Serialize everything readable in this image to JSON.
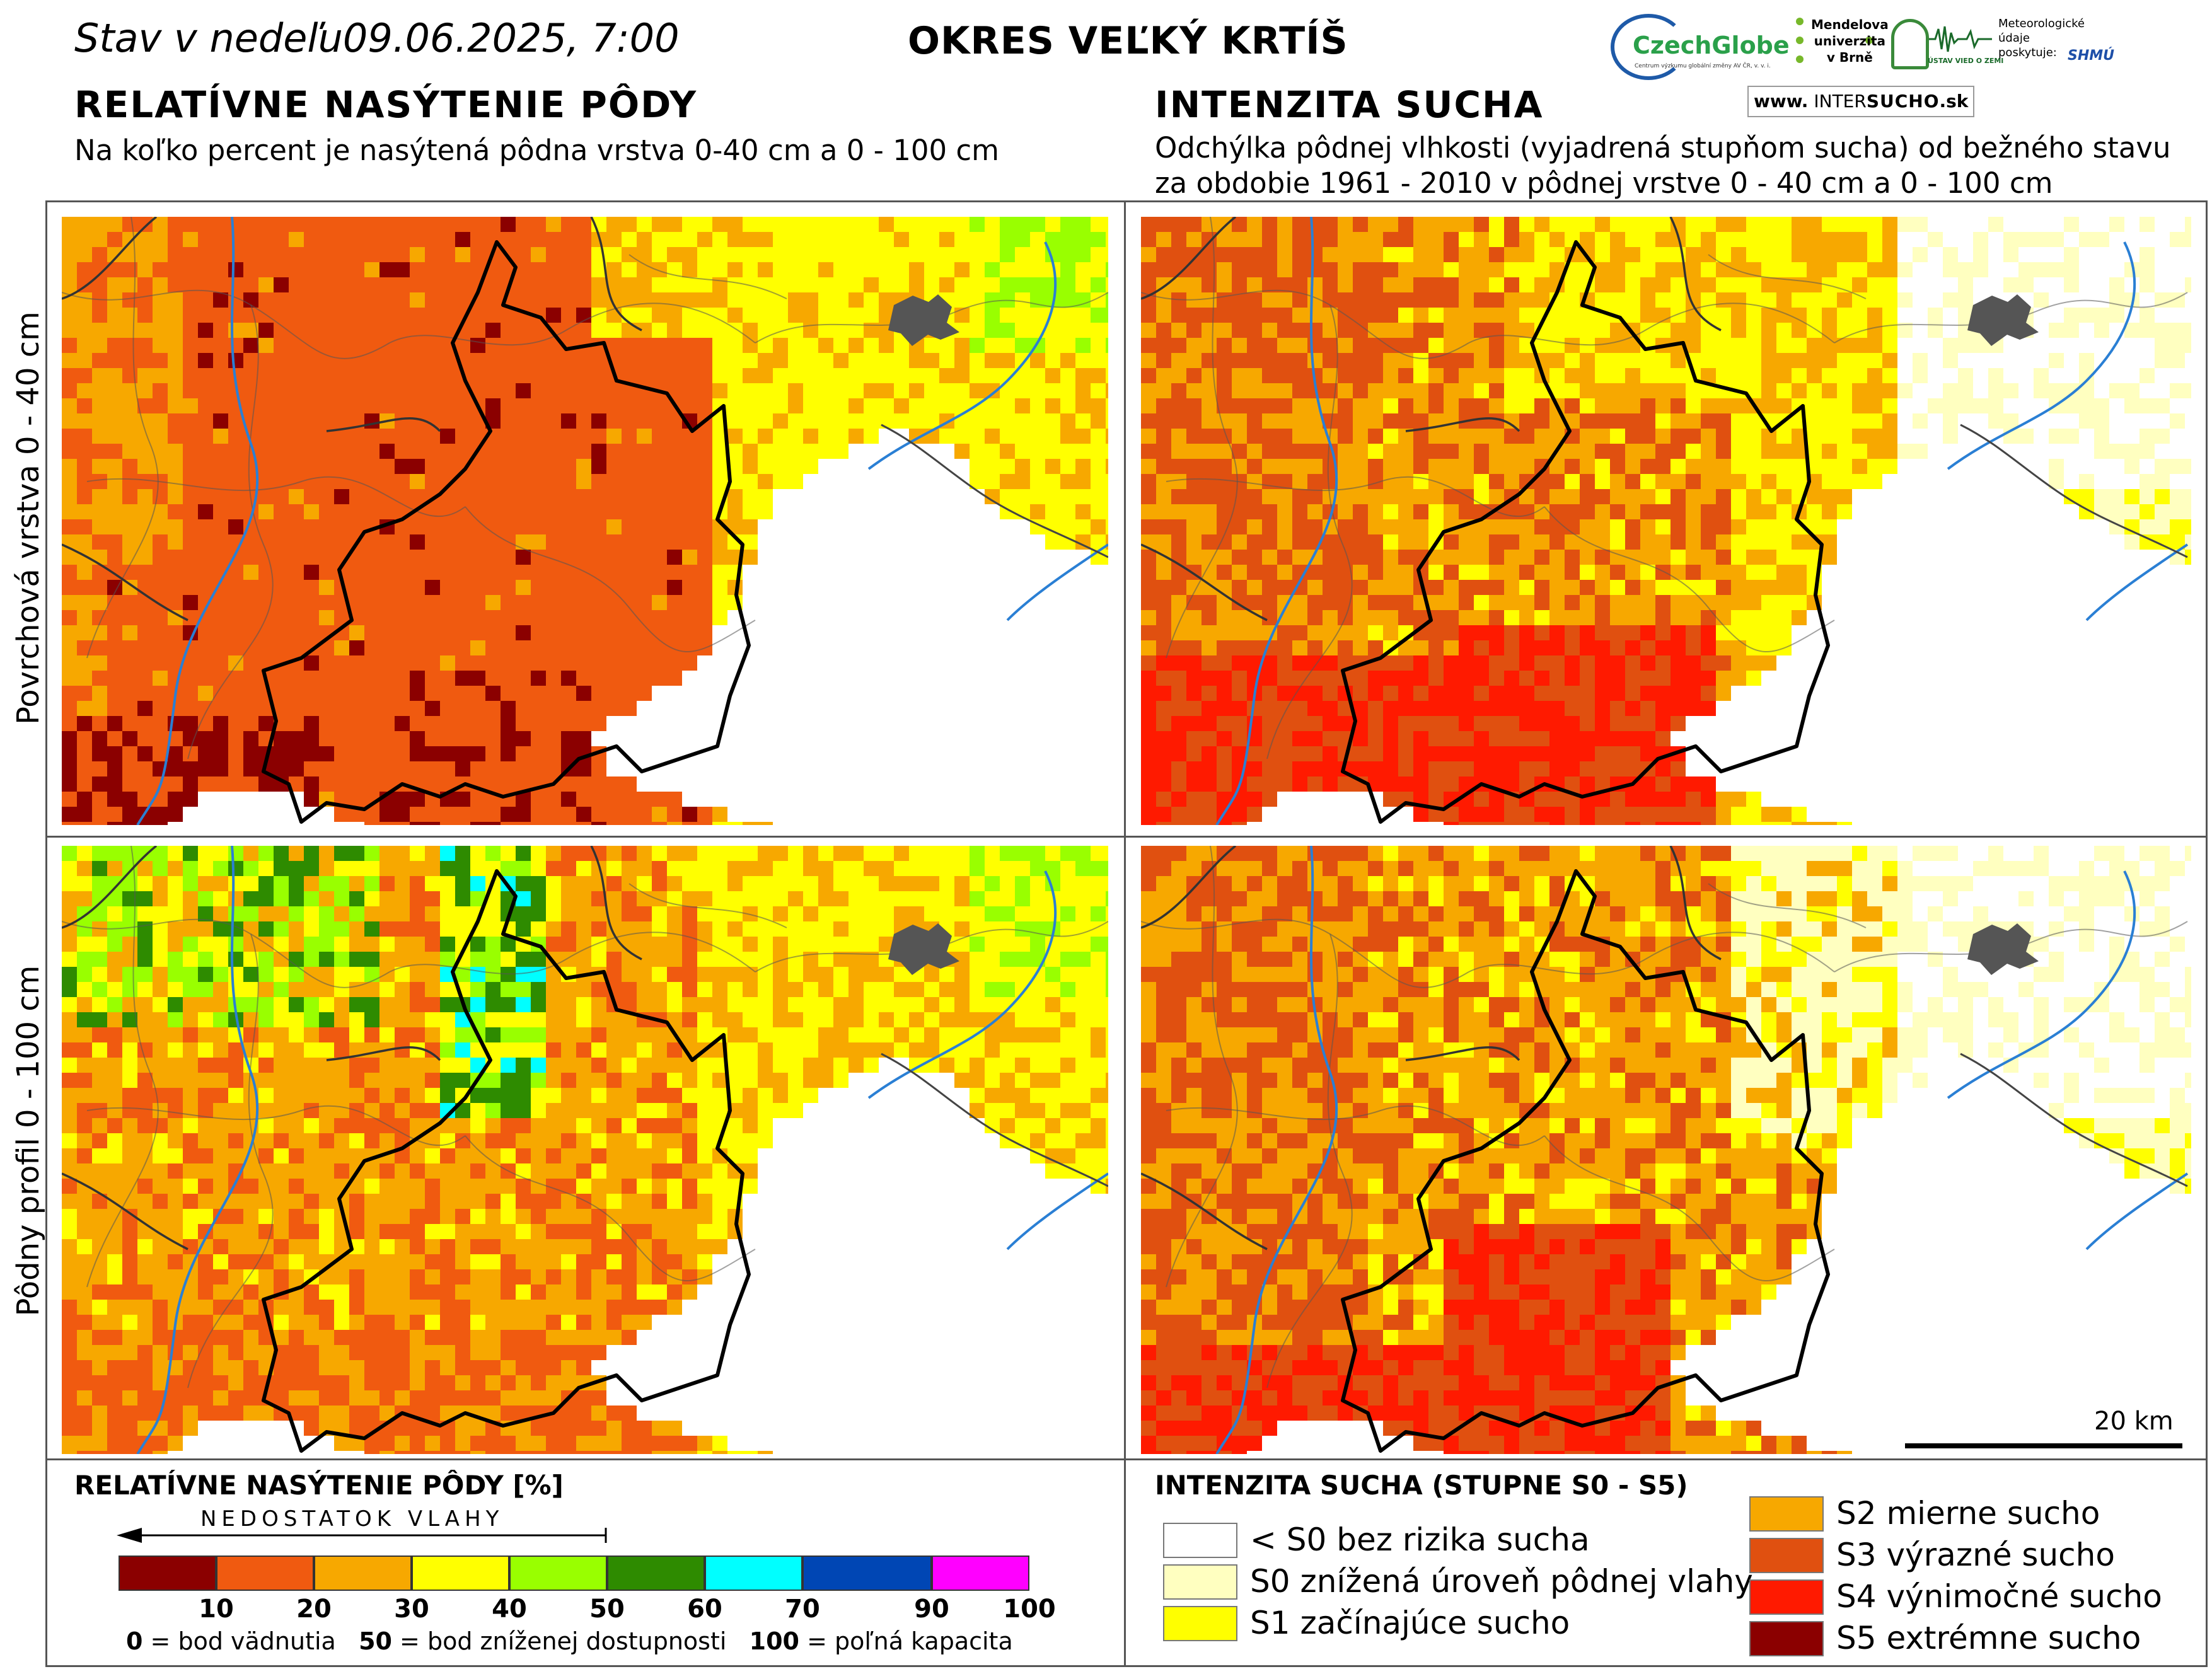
{
  "header": {
    "stav_label": "Stav v nedeľu",
    "date_time": "09.06.2025, 7:00",
    "okres": "OKRES  VEĽKÝ KRTÍŠ"
  },
  "left_panel": {
    "title": "RELATÍVNE NASÝTENIE PÔDY",
    "subtitle": "Na koľko percent je nasýtená pôdna vrstva 0-40 cm a 0 - 100 cm"
  },
  "right_panel": {
    "title": "INTENZITA SUCHA",
    "subtitle_line1": "Odchýlka pôdnej vlhkosti (vyjadrená stupňom sucha) od bežného stavu",
    "subtitle_line2": "za obdobie 1961 - 2010 v pôdnej vrstve 0 - 40 cm a 0 - 100 cm"
  },
  "logos": {
    "czechglobe": "CzechGlobe",
    "czechglobe_small": "Centrum výzkumu globální změny AV ČR, v. v. i.",
    "mendel": [
      "Mendelova",
      "univerzita",
      "v Brně"
    ],
    "uvz": "ÚSTAV VIED O ZEMI",
    "meteo": [
      "Meteorologické",
      "údaje",
      "poskytuje:"
    ],
    "shmu": "SHMÚ",
    "intersucho_www": "www.",
    "intersucho_inter": "INTER",
    "intersucho_sucho": "SUCHO",
    "intersucho_sk": ".sk"
  },
  "row_labels": {
    "top": "Povrchová vrstva 0 - 40 cm",
    "bottom": "Pôdny profil 0 - 100 cm"
  },
  "scale": {
    "label": "20 km"
  },
  "legend_saturation": {
    "title": "RELATÍVNE NASÝTENIE PÔDY [%]",
    "arrow_label": "NEDOSTATOK VLAHY",
    "segments": [
      {
        "from": 0,
        "to": 10,
        "color": "#8b0000"
      },
      {
        "from": 10,
        "to": 20,
        "color": "#f05a10"
      },
      {
        "from": 20,
        "to": 30,
        "color": "#f7a800"
      },
      {
        "from": 30,
        "to": 40,
        "color": "#ffff00"
      },
      {
        "from": 40,
        "to": 50,
        "color": "#99ff00"
      },
      {
        "from": 50,
        "to": 60,
        "color": "#2e8b00"
      },
      {
        "from": 60,
        "to": 70,
        "color": "#00ffff"
      },
      {
        "from": 70,
        "to": 90,
        "color": "#0046b4"
      },
      {
        "from": 90,
        "to": 100,
        "color": "#ff00ff"
      }
    ],
    "ticks": [
      "10",
      "20",
      "30",
      "40",
      "50",
      "60",
      "70",
      "90",
      "100"
    ],
    "footnote": {
      "v0": "0",
      "t0": " = bod vädnutia",
      "v50": "50",
      "t50": " = bod zníženej dostupnosti",
      "v100": "100",
      "t100": " = poľná kapacita"
    }
  },
  "legend_drought": {
    "title": "INTENZITA SUCHA (STUPNE S0 - S5)",
    "items": [
      {
        "label": "< S0 bez rizika sucha",
        "color": "#ffffff"
      },
      {
        "label": "S0 znížená úroveň pôdnej vlahy",
        "color": "#ffffc0"
      },
      {
        "label": "S1 začínajúce sucho",
        "color": "#ffff00"
      },
      {
        "label": "S2 mierne sucho",
        "color": "#f7a800"
      },
      {
        "label": "S3 výrazné sucho",
        "color": "#e05010"
      },
      {
        "label": "S4 výnimočné sucho",
        "color": "#ff1a00"
      },
      {
        "label": "S5 extrémne sucho",
        "color": "#8b0000"
      }
    ]
  }
}
